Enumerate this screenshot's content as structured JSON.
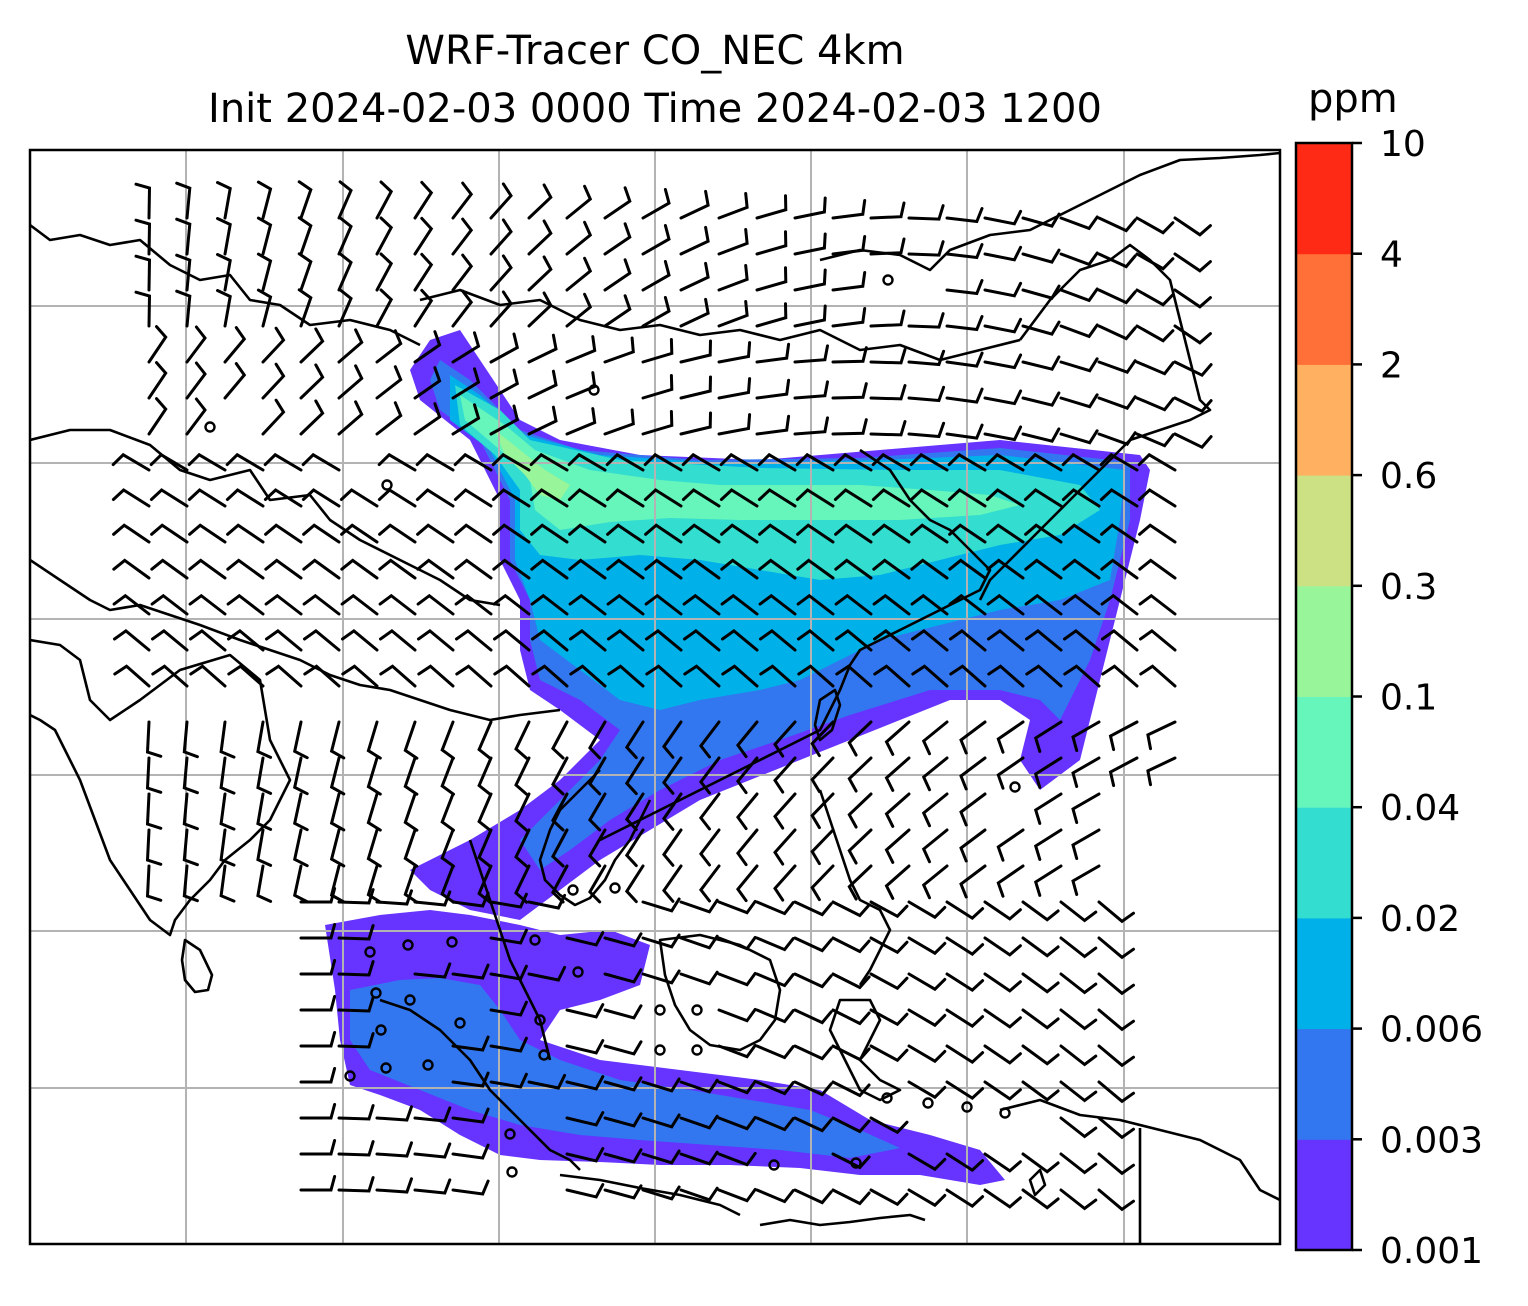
{
  "title": {
    "line1": "WRF-Tracer CO_NEC 4km",
    "line2": "Init 2024-02-03 0000 Time 2024-02-03 1200"
  },
  "colorbar": {
    "unit": "ppm",
    "levels": [
      "0.001",
      "0.003",
      "0.006",
      "0.02",
      "0.04",
      "0.1",
      "0.3",
      "0.6",
      "2",
      "4",
      "10"
    ],
    "colors": [
      "#6633ff",
      "#3377f0",
      "#00b0e8",
      "#33ddd0",
      "#66f5bb",
      "#99f599",
      "#cce084",
      "#ffb061",
      "#ff7038",
      "#ff2a15"
    ]
  },
  "plume_colors": {
    "lowest": "#6633ff",
    "low": "#3377f0",
    "medium": "#00b0e8",
    "high": "#33ddd0",
    "higher": "#66f5bb",
    "peak": "#99f599"
  },
  "map": {
    "gridlines": true,
    "coastline_color": "#000000",
    "grid_color": "#b3b3b3",
    "wind_barbs": true
  }
}
